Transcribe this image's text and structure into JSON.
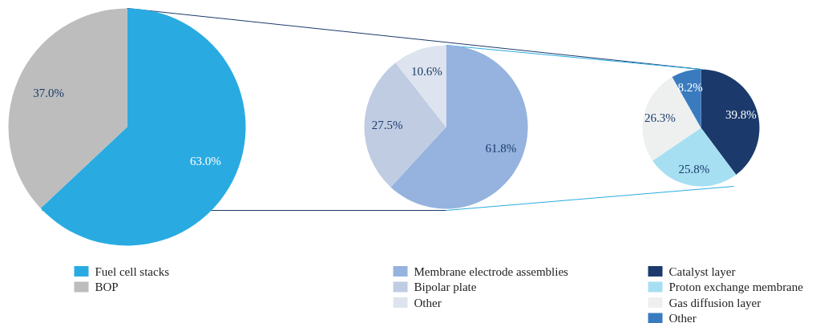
{
  "chart_data": [
    {
      "type": "pie",
      "categories": [
        "Fuel cell stacks",
        "BOP"
      ],
      "values": [
        63.0,
        37.0
      ],
      "colors": [
        "#29abe2",
        "#bdbdbd"
      ],
      "value_labels": [
        "63.0%",
        "37.0%"
      ],
      "legend": "bottom"
    },
    {
      "type": "pie",
      "categories": [
        "Membrane electrode assemblies",
        "Bipolar plate",
        "Other"
      ],
      "values": [
        61.8,
        27.5,
        10.6
      ],
      "colors": [
        "#95b3de",
        "#bfcce2",
        "#dde4ef"
      ],
      "value_labels": [
        "61.8%",
        "27.5%",
        "10.6%"
      ],
      "legend": "bottom"
    },
    {
      "type": "pie",
      "categories": [
        "Catalyst layer",
        "Proton exchange membrane",
        "Gas diffusion layer",
        "Other"
      ],
      "values": [
        39.8,
        25.8,
        26.3,
        8.2
      ],
      "colors": [
        "#1b3a6b",
        "#a6dff2",
        "#eef0f0",
        "#3a7bc0"
      ],
      "value_labels": [
        "39.8%",
        "25.8%",
        "26.3%",
        "8.2%"
      ],
      "legend": "bottom"
    }
  ]
}
